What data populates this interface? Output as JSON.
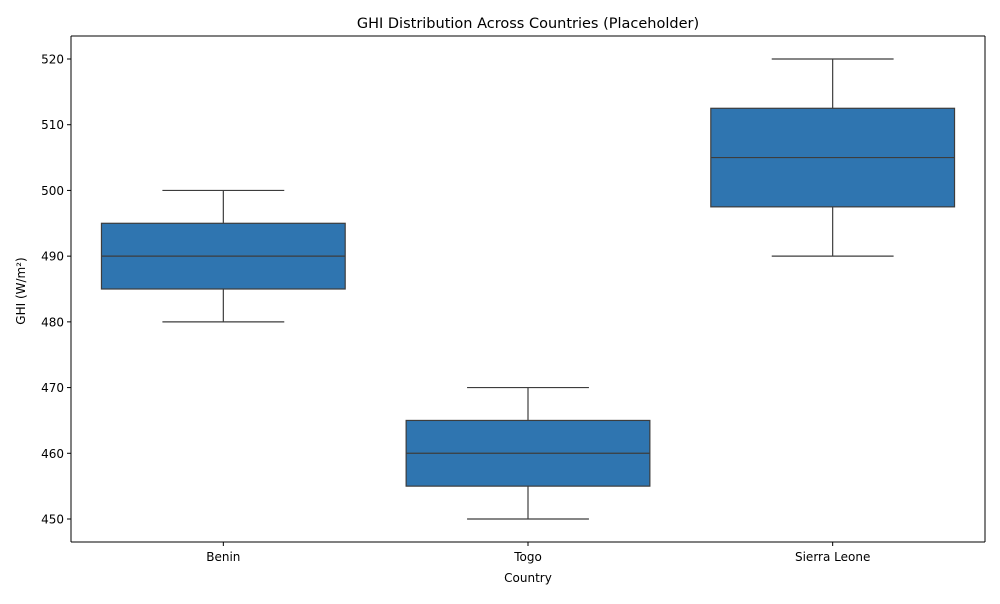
{
  "chart_data": {
    "type": "box",
    "title": "GHI Distribution Across Countries (Placeholder)",
    "xlabel": "Country",
    "ylabel": "GHI (W/m²)",
    "categories": [
      "Benin",
      "Togo",
      "Sierra Leone"
    ],
    "boxes": [
      {
        "category": "Benin",
        "min": 480,
        "q1": 485,
        "median": 490,
        "q3": 495,
        "max": 500
      },
      {
        "category": "Togo",
        "min": 450,
        "q1": 455,
        "median": 460,
        "q3": 465,
        "max": 470
      },
      {
        "category": "Sierra Leone",
        "min": 490,
        "q1": 497.5,
        "median": 505,
        "q3": 512.5,
        "max": 520
      }
    ],
    "ylim": [
      446.5,
      523.5
    ],
    "yticks": [
      450,
      460,
      470,
      480,
      490,
      500,
      510,
      520
    ],
    "grid": false,
    "colors": {
      "box_fill": "#2f75b0",
      "line": "#3d3d3d",
      "axis": "#000000"
    }
  }
}
